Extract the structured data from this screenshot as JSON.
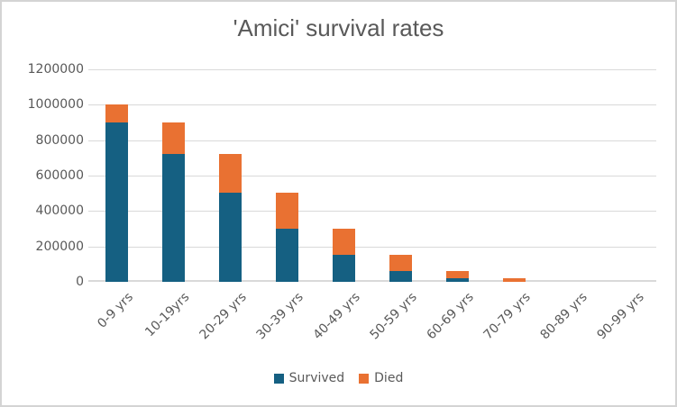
{
  "chart": {
    "title": "'Amici' survival rates"
  },
  "colors": {
    "survived": "#156082",
    "died": "#E97132",
    "text_gray": "#595959",
    "gridline": "#D9D9D9",
    "axis_line": "#D9D9D9",
    "frame_border": "#D4D4D4",
    "background": "#FFFFFF"
  },
  "chart_data": {
    "type": "bar",
    "stacked": true,
    "title": "'Amici' survival rates",
    "categories": [
      "0-9 yrs",
      "10-19yrs",
      "20-29 yrs",
      "30-39 yrs",
      "40-49 yrs",
      "50-59 yrs",
      "60-69 yrs",
      "70-79 yrs",
      "80-89 yrs",
      "90-99 yrs"
    ],
    "series": [
      {
        "name": "Survived",
        "color": "#156082",
        "values": [
          900000,
          720000,
          504000,
          302400,
          151200,
          60480,
          18144,
          0,
          0,
          0
        ]
      },
      {
        "name": "Died",
        "color": "#E97132",
        "values": [
          100000,
          180000,
          216000,
          201600,
          151200,
          90720,
          42336,
          18144,
          0,
          0
        ]
      }
    ],
    "xlabel": "",
    "ylabel": "",
    "ylim": [
      0,
      1200000
    ],
    "ytick_interval": 200000,
    "yticks": [
      0,
      200000,
      400000,
      600000,
      800000,
      1000000,
      1200000
    ],
    "grid": "horizontal",
    "legend_position": "bottom",
    "legend_entries": [
      "Survived",
      "Died"
    ]
  }
}
